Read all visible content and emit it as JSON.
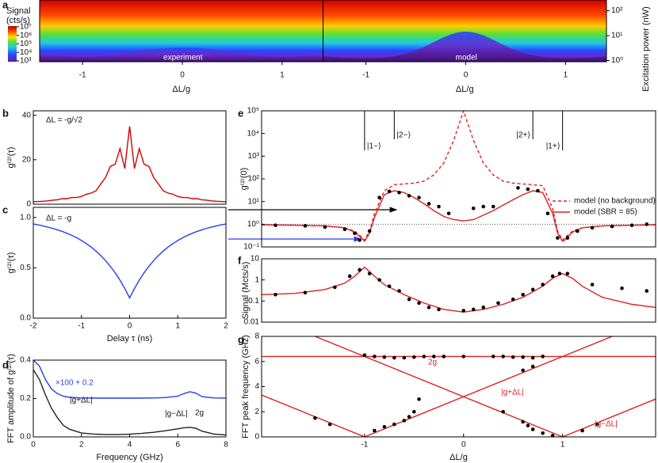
{
  "chart_data": [
    {
      "type": "heatmap",
      "panel": "a",
      "colorbar_title": [
        "Signal",
        "(cts/s)"
      ],
      "clim": [
        800,
        12000000
      ],
      "colorbar_ticks": [
        {
          "value": 1000,
          "label": "10³"
        },
        {
          "value": 10000,
          "label": "10⁴"
        },
        {
          "value": 100000,
          "label": "10⁵"
        },
        {
          "value": 1000000,
          "label": "10⁶"
        },
        {
          "value": 10000000,
          "label": "10⁷"
        }
      ],
      "ylabel": "Excitation power (nW)",
      "log_y": true,
      "ylim": [
        0.9,
        270
      ],
      "yticks": [
        {
          "value": 1,
          "label": "10⁰"
        },
        {
          "value": 10,
          "label": "10¹"
        },
        {
          "value": 100,
          "label": "10²"
        }
      ],
      "xlim": [
        -1.43,
        1.41
      ],
      "panels": [
        {
          "name": "experiment",
          "xticks": [
            -1,
            0,
            1
          ],
          "xlabel": "ΔL/g"
        },
        {
          "name": "model",
          "xticks": [
            -1,
            0,
            1
          ],
          "xlabel": "ΔL/g"
        }
      ]
    },
    {
      "type": "line",
      "panel": "b",
      "annotations": [
        "ΔL = -g/√2"
      ],
      "ylabel": "g⁽²⁾(τ)",
      "xlim": [
        -2,
        2
      ],
      "ylim": [
        0,
        42
      ],
      "yticks": [
        0,
        20,
        40
      ],
      "x": [
        -2,
        -1.9,
        -1.8,
        -1.7,
        -1.6,
        -1.5,
        -1.4,
        -1.3,
        -1.2,
        -1.1,
        -1,
        -0.9,
        -0.8,
        -0.7,
        -0.6,
        -0.5,
        -0.4,
        -0.3,
        -0.2,
        -0.1,
        0,
        0.1,
        0.2,
        0.3,
        0.4,
        0.5,
        0.6,
        0.7,
        0.8,
        0.9,
        1,
        1.1,
        1.2,
        1.3,
        1.4,
        1.5,
        1.6,
        1.7,
        1.8,
        1.9,
        2
      ],
      "series": [
        {
          "color": "#d40000",
          "values": [
            1.1,
            1.2,
            1.3,
            1.5,
            1.8,
            2,
            2.5,
            2.5,
            3,
            3,
            3.5,
            4.5,
            5,
            6,
            9,
            12,
            17,
            18,
            25,
            16,
            35,
            16,
            25,
            18,
            17,
            12,
            9,
            6,
            5,
            4.5,
            3.5,
            3,
            3,
            2.5,
            2.5,
            2,
            1.8,
            1.5,
            1.3,
            1.2,
            1.1
          ]
        }
      ]
    },
    {
      "type": "line",
      "panel": "c",
      "annotations": [
        "ΔL = -g"
      ],
      "ylabel": "g⁽²⁾(τ)",
      "xlabel": "Delay τ (ns)",
      "xlim": [
        -2,
        2
      ],
      "ylim": [
        0,
        1.1
      ],
      "yticks": [
        {
          "value": 0,
          "label": "0.0"
        },
        {
          "value": 0.5,
          "label": "0.5"
        },
        {
          "value": 1,
          "label": "1.0"
        }
      ],
      "xticks": [
        -2,
        -1,
        0,
        1,
        2
      ],
      "x": [
        -2,
        -1.9,
        -1.8,
        -1.7,
        -1.6,
        -1.5,
        -1.4,
        -1.3,
        -1.2,
        -1.1,
        -1,
        -0.9,
        -0.8,
        -0.7,
        -0.6,
        -0.5,
        -0.4,
        -0.3,
        -0.2,
        -0.1,
        0,
        0.1,
        0.2,
        0.3,
        0.4,
        0.5,
        0.6,
        0.7,
        0.8,
        0.9,
        1,
        1.1,
        1.2,
        1.3,
        1.4,
        1.5,
        1.6,
        1.7,
        1.8,
        1.9,
        2
      ],
      "series": [
        {
          "color": "#2a3cf0",
          "values": [
            0.934,
            0.926,
            0.916,
            0.904,
            0.892,
            0.877,
            0.861,
            0.842,
            0.822,
            0.798,
            0.771,
            0.74,
            0.706,
            0.666,
            0.622,
            0.572,
            0.515,
            0.45,
            0.377,
            0.294,
            0.2,
            0.294,
            0.377,
            0.45,
            0.515,
            0.572,
            0.622,
            0.666,
            0.706,
            0.74,
            0.771,
            0.798,
            0.822,
            0.842,
            0.861,
            0.877,
            0.892,
            0.904,
            0.916,
            0.926,
            0.934
          ]
        }
      ]
    },
    {
      "type": "line",
      "panel": "d",
      "annotations": [
        "×100 + 0.2",
        "|g+ΔL|",
        "|g−ΔL|",
        "2g"
      ],
      "ylabel": "FFT amplitude of g⁽²⁾(τ)",
      "xlabel": "Frequency (GHz)",
      "xlim": [
        0,
        8
      ],
      "ylim": [
        0,
        0.4
      ],
      "yticks": [
        {
          "value": 0,
          "label": "0.0"
        },
        {
          "value": 0.2,
          "label": "0.2"
        },
        {
          "value": 0.4,
          "label": "0.4"
        }
      ],
      "xticks": [
        0,
        2,
        4,
        6,
        8
      ],
      "x": [
        0,
        0.25,
        0.5,
        0.75,
        1,
        1.25,
        1.5,
        2,
        2.5,
        3,
        3.5,
        4,
        4.5,
        5,
        5.5,
        6,
        6.25,
        6.5,
        6.75,
        7,
        7.5,
        8
      ],
      "series": [
        {
          "color": "#2a3cf0",
          "values": [
            0.4,
            0.37,
            0.3,
            0.25,
            0.225,
            0.212,
            0.206,
            0.203,
            0.202,
            0.202,
            0.202,
            0.202,
            0.202,
            0.203,
            0.205,
            0.212,
            0.225,
            0.235,
            0.228,
            0.21,
            0.203,
            0.202
          ]
        },
        {
          "color": "#222222",
          "values": [
            0.35,
            0.3,
            0.22,
            0.15,
            0.1,
            0.06,
            0.04,
            0.02,
            0.015,
            0.012,
            0.012,
            0.014,
            0.018,
            0.024,
            0.032,
            0.042,
            0.047,
            0.05,
            0.045,
            0.03,
            0.015,
            0.01
          ]
        }
      ]
    },
    {
      "type": "line",
      "panel": "e",
      "ylabel": "g⁽²⁾(0)",
      "log_y": true,
      "xlim": [
        -2.04,
        1.94
      ],
      "ylim": [
        0.1,
        100000
      ],
      "yticks": [
        {
          "value": 0.1,
          "label": "10⁻¹"
        },
        {
          "value": 1,
          "label": "10⁰"
        },
        {
          "value": 10,
          "label": "10¹"
        },
        {
          "value": 100,
          "label": "10²"
        },
        {
          "value": 1000,
          "label": "10³"
        },
        {
          "value": 10000,
          "label": "10⁴"
        },
        {
          "value": 100000,
          "label": "10⁵"
        }
      ],
      "hline": 1,
      "legend": "right",
      "markers": [
        {
          "label": "|1−⟩",
          "x": -1
        },
        {
          "label": "|2−⟩",
          "x": -0.7
        },
        {
          "label": "|2+⟩",
          "x": 0.7
        },
        {
          "label": "|1+⟩",
          "x": 1
        }
      ],
      "x": [
        -2.04,
        -1.7,
        -1.4,
        -1.2,
        -1.1,
        -1.02,
        -1,
        -0.95,
        -0.9,
        -0.8,
        -0.7,
        -0.6,
        -0.5,
        -0.4,
        -0.3,
        -0.2,
        -0.1,
        0,
        0.1,
        0.2,
        0.3,
        0.4,
        0.5,
        0.6,
        0.7,
        0.8,
        0.9,
        0.95,
        1,
        1.02,
        1.1,
        1.2,
        1.4,
        1.7,
        1.94
      ],
      "series": [
        {
          "name": "model (no background)",
          "color": "#e02020",
          "dash": true,
          "values": [
            0.95,
            0.9,
            0.85,
            0.7,
            0.5,
            0.25,
            0.2,
            0.5,
            3,
            30,
            55,
            60,
            65,
            80,
            150,
            500,
            5000,
            100000,
            5000,
            500,
            150,
            80,
            65,
            60,
            55,
            50,
            5,
            0.5,
            0.2,
            0.25,
            0.5,
            0.7,
            0.85,
            0.9,
            0.95
          ]
        },
        {
          "name": "model (SBR = 85)",
          "color": "#e02020",
          "values": [
            0.95,
            0.9,
            0.85,
            0.7,
            0.45,
            0.22,
            0.18,
            0.4,
            2,
            20,
            30,
            25,
            15,
            8,
            4,
            2.2,
            1.6,
            1.4,
            1.6,
            2.5,
            4,
            7,
            12,
            20,
            30,
            25,
            3,
            0.4,
            0.18,
            0.2,
            0.45,
            0.7,
            0.85,
            0.9,
            0.95
          ]
        }
      ],
      "points": {
        "color": "#000000",
        "x": [
          -1.9,
          -1.6,
          -1.4,
          -1.2,
          -1.1,
          -1.05,
          -0.95,
          -0.85,
          -0.75,
          -0.65,
          -0.55,
          -0.45,
          -0.35,
          -0.25,
          -0.15,
          0.1,
          0.2,
          0.3,
          0.55,
          0.65,
          0.75,
          0.85,
          0.95,
          1.05,
          1.15,
          1.3,
          1.5,
          1.7,
          1.85
        ],
        "values": [
          0.9,
          0.85,
          0.75,
          0.6,
          0.4,
          0.2,
          0.5,
          15,
          28,
          25,
          18,
          15,
          8,
          6,
          3,
          5,
          6,
          6,
          40,
          35,
          30,
          3,
          0.25,
          0.25,
          0.5,
          0.7,
          0.8,
          0.9,
          1.0
        ]
      }
    },
    {
      "type": "line",
      "panel": "f",
      "ylabel": "Signal (Mcts/s)",
      "log_y": true,
      "xlim": [
        -2.04,
        1.94
      ],
      "ylim": [
        0.01,
        10
      ],
      "yticks": [
        0.01,
        0.1,
        1,
        10
      ],
      "x": [
        -2.04,
        -1.7,
        -1.4,
        -1.2,
        -1.1,
        -1,
        -0.9,
        -0.8,
        -0.6,
        -0.4,
        -0.2,
        0,
        0.2,
        0.4,
        0.6,
        0.8,
        0.9,
        1,
        1.1,
        1.2,
        1.4,
        1.7,
        1.94
      ],
      "series": [
        {
          "color": "#e02020",
          "values": [
            0.2,
            0.23,
            0.35,
            0.7,
            1.5,
            4,
            1.5,
            0.6,
            0.2,
            0.08,
            0.04,
            0.03,
            0.04,
            0.07,
            0.15,
            0.5,
            1.2,
            2,
            1.2,
            0.5,
            0.15,
            0.07,
            0.05
          ]
        }
      ],
      "points": {
        "color": "#000000",
        "x": [
          -1.9,
          -1.6,
          -1.3,
          -1.15,
          -1.05,
          -0.95,
          -0.85,
          -0.75,
          -0.65,
          -0.55,
          -0.45,
          -0.35,
          -0.25,
          0,
          0.1,
          0.2,
          0.35,
          0.5,
          0.6,
          0.7,
          0.8,
          0.9,
          0.97,
          1.05,
          1.3,
          1.6,
          1.85
        ],
        "values": [
          0.2,
          0.25,
          0.45,
          1.5,
          3,
          2,
          1,
          0.5,
          0.3,
          0.12,
          0.08,
          0.05,
          0.04,
          0.035,
          0.04,
          0.05,
          0.08,
          0.12,
          0.2,
          0.35,
          0.6,
          1.5,
          2,
          2,
          0.6,
          0.4,
          0.3
        ]
      }
    },
    {
      "type": "line",
      "panel": "g",
      "ylabel": "FFT peak frequency (GHz)",
      "xlabel": "ΔL/g",
      "xlim": [
        -2.04,
        1.94
      ],
      "ylim": [
        0,
        8
      ],
      "yticks": [
        0,
        2,
        4,
        6,
        8
      ],
      "xticks": [
        -1,
        0,
        1
      ],
      "series": [
        {
          "name": "2g",
          "color": "#e02020",
          "x": [
            -2.04,
            1.94
          ],
          "values": [
            6.4,
            6.4
          ]
        },
        {
          "name": "|g+ΔL|",
          "color": "#e02020",
          "x": [
            -2.04,
            -1,
            1.5
          ],
          "values": [
            3.33,
            0,
            8
          ]
        },
        {
          "name": "|g−ΔL|",
          "color": "#e02020",
          "x": [
            -1.5,
            1,
            1.94
          ],
          "values": [
            8,
            0,
            3.01
          ]
        }
      ],
      "points": {
        "color": "#000000",
        "x": [
          -1,
          -0.9,
          -0.8,
          -0.7,
          -0.6,
          -0.5,
          -0.4,
          -0.3,
          -0.2,
          0,
          0.3,
          0.4,
          0.5,
          0.6,
          0.7,
          0.8,
          -1.5,
          -1.35,
          -0.9,
          -0.8,
          -0.7,
          -0.6,
          -0.55,
          -0.5,
          -0.45,
          0.4,
          0.6,
          0.65,
          0.7,
          0.8,
          0.9,
          1.2,
          1.35,
          0.6,
          0.7
        ],
        "values": [
          6.5,
          6.4,
          6.35,
          6.3,
          6.3,
          6.35,
          6.4,
          6.4,
          6.4,
          6.4,
          6.4,
          6.4,
          6.35,
          6.35,
          6.3,
          6.4,
          1.5,
          1,
          0.5,
          0.8,
          1,
          1.3,
          1.6,
          2,
          3,
          2,
          1.2,
          0.9,
          0.6,
          0.3,
          0.1,
          0.5,
          1,
          5.3,
          5.6
        ]
      }
    }
  ]
}
